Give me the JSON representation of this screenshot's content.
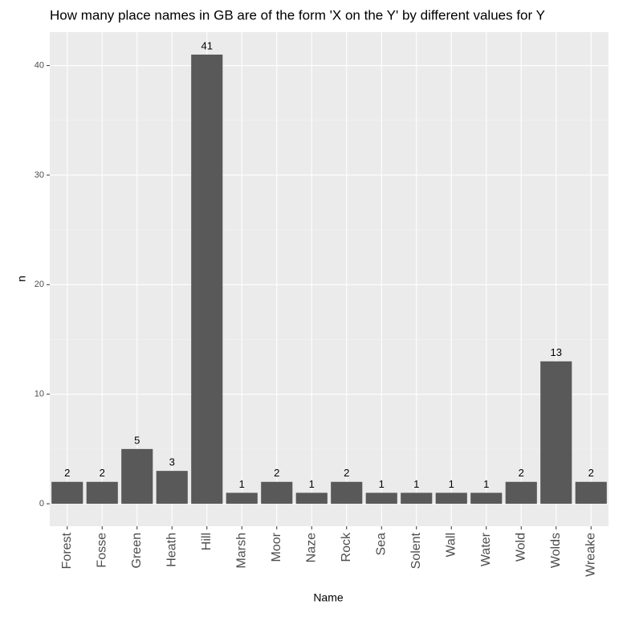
{
  "chart_data": {
    "type": "bar",
    "title": "How many place names in GB are of the form 'X on the Y' by different values for Y",
    "x_label": "Name",
    "y_label": "n",
    "categories": [
      "Forest",
      "Fosse",
      "Green",
      "Heath",
      "Hill",
      "Marsh",
      "Moor",
      "Naze",
      "Rock",
      "Sea",
      "Solent",
      "Wall",
      "Water",
      "Wold",
      "Wolds",
      "Wreake"
    ],
    "values": [
      2,
      2,
      5,
      3,
      41,
      1,
      2,
      1,
      2,
      1,
      1,
      1,
      1,
      2,
      13,
      2
    ],
    "color": "#595959",
    "ylim": [
      -2.05,
      43.05
    ],
    "yticks": [
      0,
      10,
      20,
      30,
      40
    ],
    "minor_yticks": [
      5,
      15,
      25,
      35
    ],
    "grid": true
  }
}
